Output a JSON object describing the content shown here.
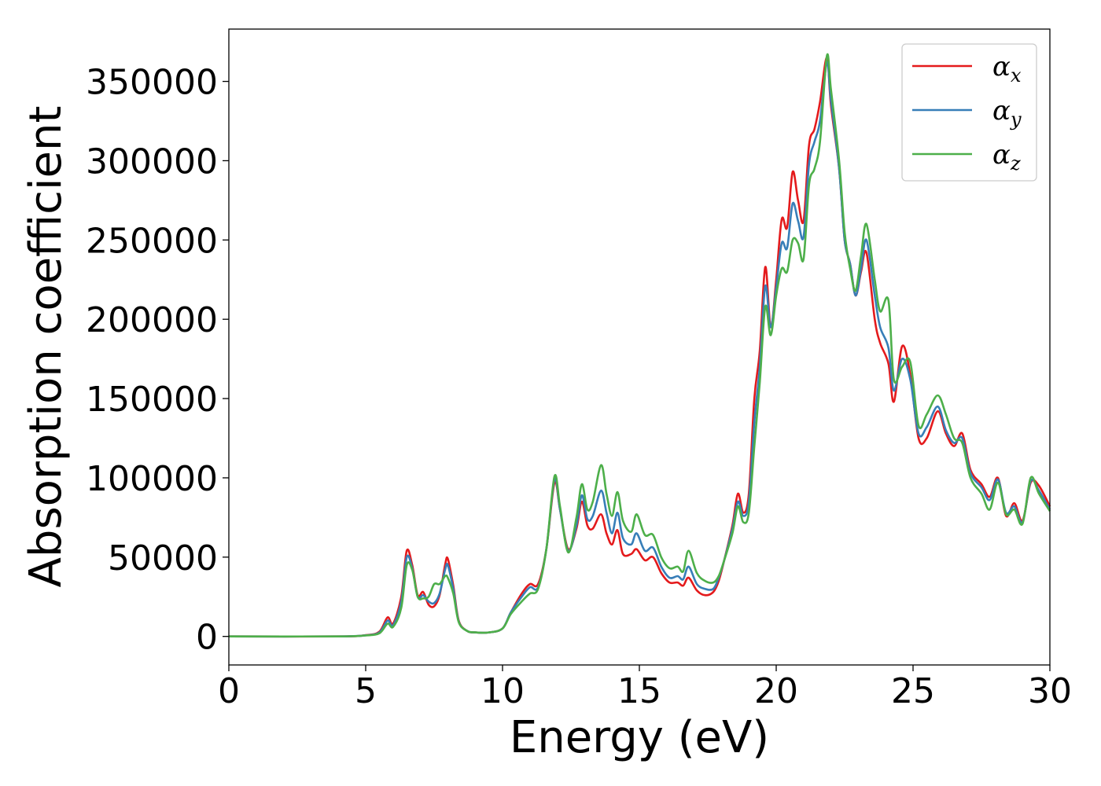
{
  "chart_data": {
    "type": "line",
    "title": "",
    "xlabel": "Energy (eV)",
    "ylabel": "Absorption coefficient",
    "xlim": [
      0,
      30
    ],
    "ylim": [
      -18000,
      383000
    ],
    "xticks": [
      0,
      5,
      10,
      15,
      20,
      25,
      30
    ],
    "xtick_labels": [
      "0",
      "5",
      "10",
      "15",
      "20",
      "25",
      "30"
    ],
    "yticks": [
      0,
      50000,
      100000,
      150000,
      200000,
      250000,
      300000,
      350000
    ],
    "ytick_labels": [
      "0",
      "50000",
      "100000",
      "150000",
      "200000",
      "250000",
      "300000",
      "350000"
    ],
    "grid": false,
    "legend_position": "top-right",
    "series": [
      {
        "name": "αx",
        "symbol": "α",
        "subscript": "x",
        "color": "#e41a1c",
        "points": [
          [
            0,
            0
          ],
          [
            4,
            0
          ],
          [
            5,
            800
          ],
          [
            5.5,
            3000
          ],
          [
            5.8,
            12000
          ],
          [
            6.0,
            8000
          ],
          [
            6.3,
            25000
          ],
          [
            6.5,
            54000
          ],
          [
            6.7,
            45000
          ],
          [
            6.9,
            26000
          ],
          [
            7.1,
            28000
          ],
          [
            7.3,
            20000
          ],
          [
            7.5,
            19000
          ],
          [
            7.7,
            26000
          ],
          [
            7.9,
            45000
          ],
          [
            8.0,
            49000
          ],
          [
            8.2,
            32000
          ],
          [
            8.4,
            10000
          ],
          [
            8.7,
            3500
          ],
          [
            9.0,
            2500
          ],
          [
            9.5,
            2500
          ],
          [
            10.0,
            5000
          ],
          [
            10.3,
            15000
          ],
          [
            10.7,
            27000
          ],
          [
            11.0,
            33000
          ],
          [
            11.3,
            33000
          ],
          [
            11.6,
            55000
          ],
          [
            11.9,
            97000
          ],
          [
            12.1,
            80000
          ],
          [
            12.4,
            55000
          ],
          [
            12.7,
            68000
          ],
          [
            12.9,
            85000
          ],
          [
            13.1,
            70000
          ],
          [
            13.3,
            68000
          ],
          [
            13.6,
            77000
          ],
          [
            13.8,
            65000
          ],
          [
            14.0,
            58000
          ],
          [
            14.2,
            67000
          ],
          [
            14.4,
            52000
          ],
          [
            14.7,
            52000
          ],
          [
            14.9,
            55000
          ],
          [
            15.2,
            48000
          ],
          [
            15.5,
            50000
          ],
          [
            15.8,
            40000
          ],
          [
            16.1,
            34000
          ],
          [
            16.4,
            34000
          ],
          [
            16.6,
            32000
          ],
          [
            16.8,
            37000
          ],
          [
            17.1,
            29000
          ],
          [
            17.4,
            26000
          ],
          [
            17.7,
            28000
          ],
          [
            17.9,
            35000
          ],
          [
            18.1,
            48000
          ],
          [
            18.4,
            70000
          ],
          [
            18.6,
            90000
          ],
          [
            18.8,
            78000
          ],
          [
            19.0,
            90000
          ],
          [
            19.2,
            150000
          ],
          [
            19.4,
            180000
          ],
          [
            19.6,
            233000
          ],
          [
            19.8,
            195000
          ],
          [
            20.0,
            225000
          ],
          [
            20.2,
            263000
          ],
          [
            20.4,
            258000
          ],
          [
            20.6,
            293000
          ],
          [
            20.8,
            275000
          ],
          [
            21.0,
            262000
          ],
          [
            21.2,
            310000
          ],
          [
            21.4,
            320000
          ],
          [
            21.6,
            337000
          ],
          [
            21.85,
            365000
          ],
          [
            22.0,
            335000
          ],
          [
            22.3,
            295000
          ],
          [
            22.5,
            250000
          ],
          [
            22.7,
            235000
          ],
          [
            22.9,
            215000
          ],
          [
            23.1,
            230000
          ],
          [
            23.3,
            242000
          ],
          [
            23.6,
            200000
          ],
          [
            23.8,
            185000
          ],
          [
            24.1,
            172000
          ],
          [
            24.3,
            148000
          ],
          [
            24.6,
            183000
          ],
          [
            24.9,
            165000
          ],
          [
            25.2,
            125000
          ],
          [
            25.5,
            125000
          ],
          [
            25.9,
            142000
          ],
          [
            26.2,
            128000
          ],
          [
            26.5,
            120000
          ],
          [
            26.8,
            128000
          ],
          [
            27.1,
            105000
          ],
          [
            27.5,
            96000
          ],
          [
            27.8,
            88000
          ],
          [
            28.1,
            100000
          ],
          [
            28.4,
            76000
          ],
          [
            28.7,
            84000
          ],
          [
            29.0,
            73000
          ],
          [
            29.3,
            97000
          ],
          [
            29.6,
            95000
          ],
          [
            30.0,
            82000
          ]
        ]
      },
      {
        "name": "αy",
        "symbol": "α",
        "subscript": "y",
        "color": "#377eb8",
        "points": [
          [
            0,
            0
          ],
          [
            4,
            0
          ],
          [
            5,
            700
          ],
          [
            5.5,
            2500
          ],
          [
            5.8,
            10000
          ],
          [
            6.0,
            7000
          ],
          [
            6.3,
            22000
          ],
          [
            6.5,
            50000
          ],
          [
            6.7,
            43000
          ],
          [
            6.9,
            25000
          ],
          [
            7.1,
            26000
          ],
          [
            7.3,
            22000
          ],
          [
            7.5,
            21000
          ],
          [
            7.7,
            27000
          ],
          [
            7.9,
            42000
          ],
          [
            8.0,
            45000
          ],
          [
            8.2,
            30000
          ],
          [
            8.4,
            9500
          ],
          [
            8.7,
            3500
          ],
          [
            9.0,
            2500
          ],
          [
            9.5,
            2500
          ],
          [
            10.0,
            5000
          ],
          [
            10.3,
            15000
          ],
          [
            10.7,
            25000
          ],
          [
            11.0,
            31000
          ],
          [
            11.3,
            31000
          ],
          [
            11.6,
            55000
          ],
          [
            11.9,
            99000
          ],
          [
            12.1,
            80000
          ],
          [
            12.4,
            54000
          ],
          [
            12.7,
            70000
          ],
          [
            12.9,
            89000
          ],
          [
            13.1,
            74000
          ],
          [
            13.3,
            76000
          ],
          [
            13.6,
            92000
          ],
          [
            13.8,
            78000
          ],
          [
            14.0,
            65000
          ],
          [
            14.2,
            78000
          ],
          [
            14.4,
            62000
          ],
          [
            14.7,
            58000
          ],
          [
            14.9,
            65000
          ],
          [
            15.2,
            54000
          ],
          [
            15.5,
            56000
          ],
          [
            15.8,
            44000
          ],
          [
            16.1,
            37000
          ],
          [
            16.4,
            38000
          ],
          [
            16.6,
            36000
          ],
          [
            16.8,
            44000
          ],
          [
            17.1,
            33000
          ],
          [
            17.4,
            30000
          ],
          [
            17.7,
            30000
          ],
          [
            17.9,
            37000
          ],
          [
            18.1,
            48000
          ],
          [
            18.4,
            68000
          ],
          [
            18.6,
            85000
          ],
          [
            18.8,
            76000
          ],
          [
            19.0,
            85000
          ],
          [
            19.2,
            135000
          ],
          [
            19.4,
            170000
          ],
          [
            19.6,
            221000
          ],
          [
            19.8,
            195000
          ],
          [
            20.0,
            220000
          ],
          [
            20.2,
            248000
          ],
          [
            20.4,
            245000
          ],
          [
            20.6,
            273000
          ],
          [
            20.8,
            262000
          ],
          [
            21.0,
            252000
          ],
          [
            21.2,
            298000
          ],
          [
            21.4,
            312000
          ],
          [
            21.6,
            325000
          ],
          [
            21.85,
            362000
          ],
          [
            22.0,
            338000
          ],
          [
            22.3,
            295000
          ],
          [
            22.5,
            250000
          ],
          [
            22.7,
            235000
          ],
          [
            22.9,
            215000
          ],
          [
            23.1,
            232000
          ],
          [
            23.3,
            250000
          ],
          [
            23.6,
            215000
          ],
          [
            23.8,
            195000
          ],
          [
            24.1,
            182000
          ],
          [
            24.3,
            155000
          ],
          [
            24.6,
            175000
          ],
          [
            24.9,
            162000
          ],
          [
            25.2,
            128000
          ],
          [
            25.5,
            132000
          ],
          [
            25.9,
            145000
          ],
          [
            26.2,
            130000
          ],
          [
            26.5,
            122000
          ],
          [
            26.8,
            125000
          ],
          [
            27.1,
            103000
          ],
          [
            27.5,
            94000
          ],
          [
            27.8,
            86000
          ],
          [
            28.1,
            99000
          ],
          [
            28.4,
            78000
          ],
          [
            28.7,
            82000
          ],
          [
            29.0,
            72000
          ],
          [
            29.3,
            98000
          ],
          [
            29.6,
            92000
          ],
          [
            30.0,
            80000
          ]
        ]
      },
      {
        "name": "αz",
        "symbol": "α",
        "subscript": "z",
        "color": "#4daf4a",
        "points": [
          [
            0,
            0
          ],
          [
            4,
            0
          ],
          [
            5,
            600
          ],
          [
            5.5,
            2000
          ],
          [
            5.8,
            8000
          ],
          [
            6.0,
            6000
          ],
          [
            6.3,
            18000
          ],
          [
            6.5,
            45000
          ],
          [
            6.7,
            42000
          ],
          [
            6.9,
            25000
          ],
          [
            7.1,
            24000
          ],
          [
            7.3,
            25000
          ],
          [
            7.5,
            33000
          ],
          [
            7.7,
            33000
          ],
          [
            7.9,
            38000
          ],
          [
            8.0,
            37000
          ],
          [
            8.2,
            27000
          ],
          [
            8.4,
            9000
          ],
          [
            8.7,
            3500
          ],
          [
            9.0,
            2500
          ],
          [
            9.5,
            2500
          ],
          [
            10.0,
            5000
          ],
          [
            10.3,
            14000
          ],
          [
            10.7,
            22000
          ],
          [
            11.0,
            27000
          ],
          [
            11.3,
            30000
          ],
          [
            11.6,
            55000
          ],
          [
            11.9,
            101000
          ],
          [
            12.1,
            82000
          ],
          [
            12.4,
            53000
          ],
          [
            12.7,
            75000
          ],
          [
            12.9,
            96000
          ],
          [
            13.1,
            80000
          ],
          [
            13.3,
            85000
          ],
          [
            13.6,
            108000
          ],
          [
            13.8,
            90000
          ],
          [
            14.0,
            76000
          ],
          [
            14.2,
            91000
          ],
          [
            14.4,
            73000
          ],
          [
            14.7,
            66000
          ],
          [
            14.9,
            77000
          ],
          [
            15.2,
            64000
          ],
          [
            15.5,
            64000
          ],
          [
            15.8,
            50000
          ],
          [
            16.1,
            43000
          ],
          [
            16.4,
            44000
          ],
          [
            16.6,
            41000
          ],
          [
            16.8,
            54000
          ],
          [
            17.1,
            40000
          ],
          [
            17.4,
            35000
          ],
          [
            17.7,
            34000
          ],
          [
            17.9,
            38000
          ],
          [
            18.1,
            48000
          ],
          [
            18.4,
            65000
          ],
          [
            18.6,
            82000
          ],
          [
            18.8,
            72000
          ],
          [
            19.0,
            78000
          ],
          [
            19.2,
            120000
          ],
          [
            19.4,
            160000
          ],
          [
            19.6,
            208000
          ],
          [
            19.8,
            190000
          ],
          [
            20.0,
            215000
          ],
          [
            20.2,
            232000
          ],
          [
            20.4,
            230000
          ],
          [
            20.6,
            250000
          ],
          [
            20.8,
            248000
          ],
          [
            21.0,
            238000
          ],
          [
            21.2,
            285000
          ],
          [
            21.4,
            295000
          ],
          [
            21.6,
            312000
          ],
          [
            21.85,
            366000
          ],
          [
            22.0,
            345000
          ],
          [
            22.3,
            300000
          ],
          [
            22.5,
            255000
          ],
          [
            22.7,
            232000
          ],
          [
            22.9,
            218000
          ],
          [
            23.1,
            240000
          ],
          [
            23.3,
            260000
          ],
          [
            23.6,
            225000
          ],
          [
            23.8,
            205000
          ],
          [
            24.1,
            212000
          ],
          [
            24.3,
            162000
          ],
          [
            24.6,
            170000
          ],
          [
            24.9,
            173000
          ],
          [
            25.2,
            133000
          ],
          [
            25.5,
            140000
          ],
          [
            25.9,
            152000
          ],
          [
            26.2,
            140000
          ],
          [
            26.5,
            125000
          ],
          [
            26.8,
            122000
          ],
          [
            27.1,
            100000
          ],
          [
            27.5,
            90000
          ],
          [
            27.8,
            80000
          ],
          [
            28.1,
            97000
          ],
          [
            28.4,
            77000
          ],
          [
            28.7,
            80000
          ],
          [
            29.0,
            71000
          ],
          [
            29.3,
            100000
          ],
          [
            29.6,
            90000
          ],
          [
            30.0,
            79000
          ]
        ]
      }
    ]
  }
}
